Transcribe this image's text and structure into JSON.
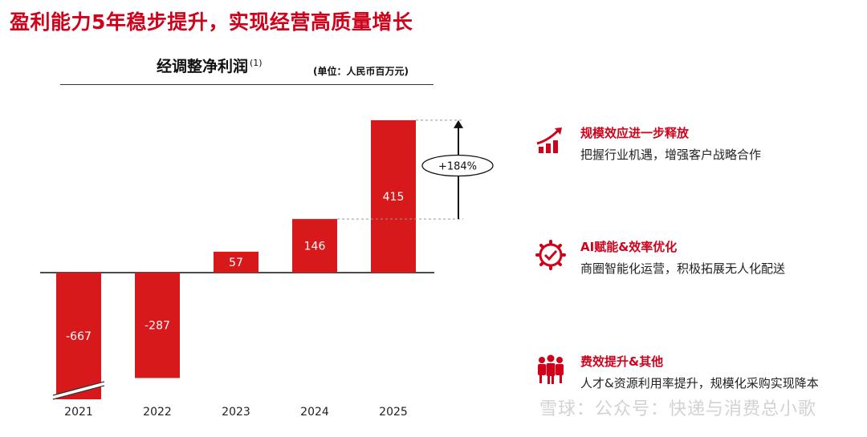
{
  "header": {
    "title": "盈利能力5年稳步提升，实现经营高质量增长"
  },
  "chart_data": {
    "type": "bar",
    "title": "经调整净利润",
    "title_note": "(1)",
    "unit": "(单位：人民币百万元)",
    "categories": [
      "2021",
      "2022",
      "2023",
      "2024",
      "2025"
    ],
    "values": [
      -667,
      -287,
      57,
      146,
      415
    ],
    "value_labels": [
      "-667",
      "-287",
      "57",
      "146",
      "415"
    ],
    "growth_annotation": "+184%",
    "bar_color": "#d7191c",
    "axis_break_on_first_bar": true
  },
  "panel": {
    "items": [
      {
        "heading": "规模效应进一步释放",
        "desc": "把握行业机遇，增强客户战略合作",
        "icon": "growth-chart-icon"
      },
      {
        "heading": "AI赋能&效率优化",
        "desc": "商圈智能化运营，积极拓展无人化配送",
        "icon": "gear-check-icon"
      },
      {
        "heading": "费效提升&其他",
        "desc": "人才&资源利用率提升，规模化采购实现降本",
        "icon": "people-group-icon"
      }
    ]
  },
  "watermark": {
    "text": "雪球：公众号：快递与消费总小歌"
  },
  "colors": {
    "accent": "#d0021b",
    "bar": "#d7191c"
  }
}
